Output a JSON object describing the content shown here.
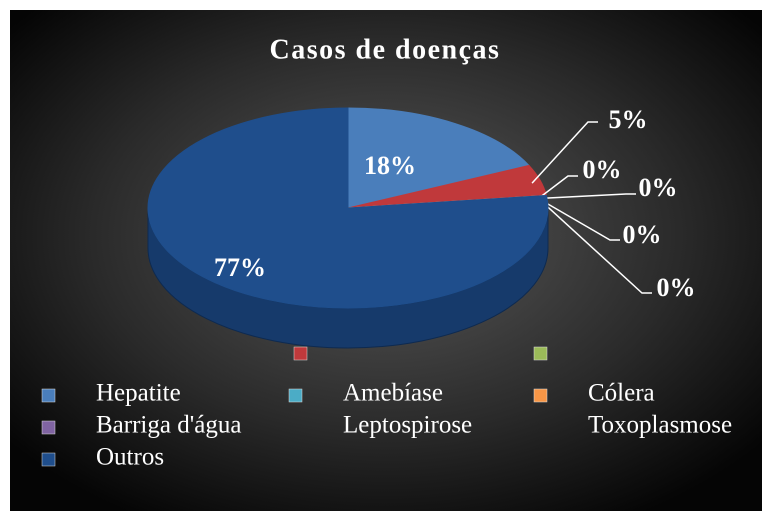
{
  "chart_data": {
    "type": "pie3d",
    "title": "Casos de doenças",
    "categories": [
      "Hepatite",
      null,
      null,
      "Amebíase",
      "Cólera",
      "Barriga d'água",
      "Leptospirose",
      "Toxoplasmose",
      "Outros"
    ],
    "values": [
      18,
      5,
      0,
      0,
      0,
      0,
      null,
      null,
      77
    ],
    "value_labels": [
      "18%",
      "5%",
      "0%",
      "0%",
      "0%",
      "0%",
      null,
      null,
      "77%"
    ],
    "colors": [
      "#4a7ebb",
      "#c0393b",
      "#9bbb59",
      "#4bacc6",
      "#f79646",
      "#8064a2",
      null,
      null,
      "#1f4e8c"
    ],
    "legend": "bottom"
  }
}
